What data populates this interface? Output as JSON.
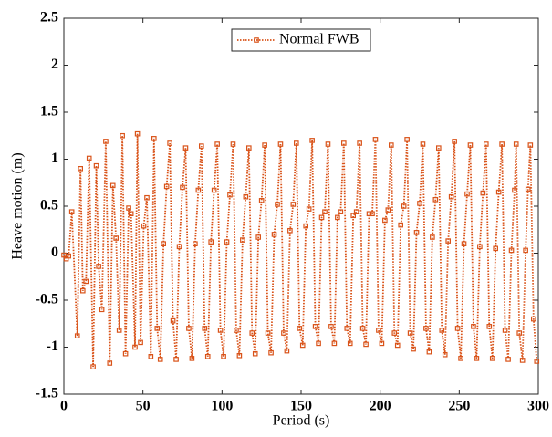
{
  "chart_data": {
    "type": "line",
    "xlabel": "Period (s)",
    "ylabel": "Heave motion (m)",
    "xlim": [
      0,
      300
    ],
    "xticks": [
      0,
      50,
      100,
      150,
      200,
      250,
      300
    ],
    "ylim": [
      -1.5,
      2.5
    ],
    "yticks": [
      -1.5,
      -1,
      -0.5,
      0,
      0.5,
      1,
      1.5,
      2,
      2.5
    ],
    "legend": "top",
    "x": [
      0,
      1.5,
      3,
      5,
      8.5,
      10.5,
      12,
      14,
      16,
      18.5,
      20.5,
      22,
      24,
      26.5,
      29,
      31,
      33,
      35,
      37,
      39,
      41,
      42.5,
      45,
      46.5,
      48.5,
      50.5,
      52.5,
      55,
      57,
      59,
      61,
      63,
      65,
      67,
      69,
      71,
      73,
      75,
      77,
      79,
      81,
      83,
      85,
      87,
      89,
      91,
      93,
      95,
      97,
      99,
      101,
      103,
      105,
      107,
      109,
      111,
      113,
      115,
      117,
      119,
      121,
      123,
      125,
      127,
      129,
      131,
      133,
      135,
      137,
      139,
      141,
      143,
      145,
      147,
      149,
      151,
      153,
      155,
      157,
      159,
      161,
      163,
      165,
      167,
      169,
      171,
      173,
      175,
      177,
      179,
      181,
      183,
      185,
      187,
      189,
      191,
      193,
      195,
      197,
      199,
      201,
      203,
      205,
      207,
      209,
      211,
      213,
      215,
      217,
      219,
      221,
      223,
      225,
      227,
      229,
      231,
      233,
      235,
      237,
      239,
      241,
      243,
      245,
      247,
      249,
      251,
      253,
      255,
      257,
      259,
      261,
      263,
      265,
      267,
      269,
      271,
      273,
      275,
      277,
      279,
      281,
      283,
      285,
      286,
      288,
      290,
      292,
      293.5,
      295,
      297,
      299
    ],
    "series": [
      {
        "name": "Normal FWB",
        "color": "#d95319",
        "values": [
          -0.02,
          -0.06,
          -0.03,
          0.44,
          -0.88,
          0.9,
          -0.4,
          -0.3,
          1.01,
          -1.21,
          0.93,
          -0.14,
          -0.6,
          1.19,
          -1.17,
          0.72,
          0.16,
          -0.82,
          1.25,
          -1.07,
          0.48,
          0.42,
          -1.0,
          1.27,
          -0.95,
          0.29,
          0.59,
          -1.1,
          1.22,
          -0.8,
          -1.13,
          0.1,
          0.71,
          1.17,
          -0.72,
          -1.13,
          0.07,
          0.7,
          1.12,
          -0.8,
          -1.12,
          0.1,
          0.67,
          1.14,
          -0.8,
          -1.1,
          0.12,
          0.67,
          1.16,
          -0.82,
          -1.1,
          0.12,
          0.62,
          1.16,
          -0.82,
          -1.09,
          0.14,
          0.6,
          1.12,
          -0.85,
          -1.07,
          0.17,
          0.56,
          1.15,
          -0.85,
          -1.06,
          0.2,
          0.52,
          1.16,
          -0.85,
          -1.04,
          0.24,
          0.52,
          1.17,
          -0.8,
          -0.98,
          0.29,
          0.47,
          1.2,
          -0.78,
          -0.96,
          0.38,
          0.44,
          1.16,
          -0.78,
          -0.96,
          0.38,
          0.44,
          1.17,
          -0.8,
          -0.96,
          0.4,
          0.44,
          1.17,
          -0.8,
          -0.97,
          0.42,
          0.42,
          1.21,
          -0.82,
          -0.96,
          0.35,
          0.46,
          1.15,
          -0.85,
          -0.98,
          0.3,
          0.5,
          1.21,
          -0.85,
          -1.02,
          0.22,
          0.53,
          1.16,
          -0.8,
          -1.05,
          0.17,
          0.57,
          1.12,
          -0.82,
          -1.08,
          0.13,
          0.6,
          1.19,
          -0.8,
          -1.12,
          0.1,
          0.63,
          1.15,
          -0.78,
          -1.12,
          0.07,
          0.64,
          1.16,
          -0.78,
          -1.12,
          0.05,
          0.65,
          1.16,
          -0.82,
          -1.13,
          0.03,
          0.67,
          1.16,
          -0.85,
          -1.14,
          0.03,
          0.68,
          1.15,
          -0.7,
          -1.15
        ]
      }
    ]
  }
}
